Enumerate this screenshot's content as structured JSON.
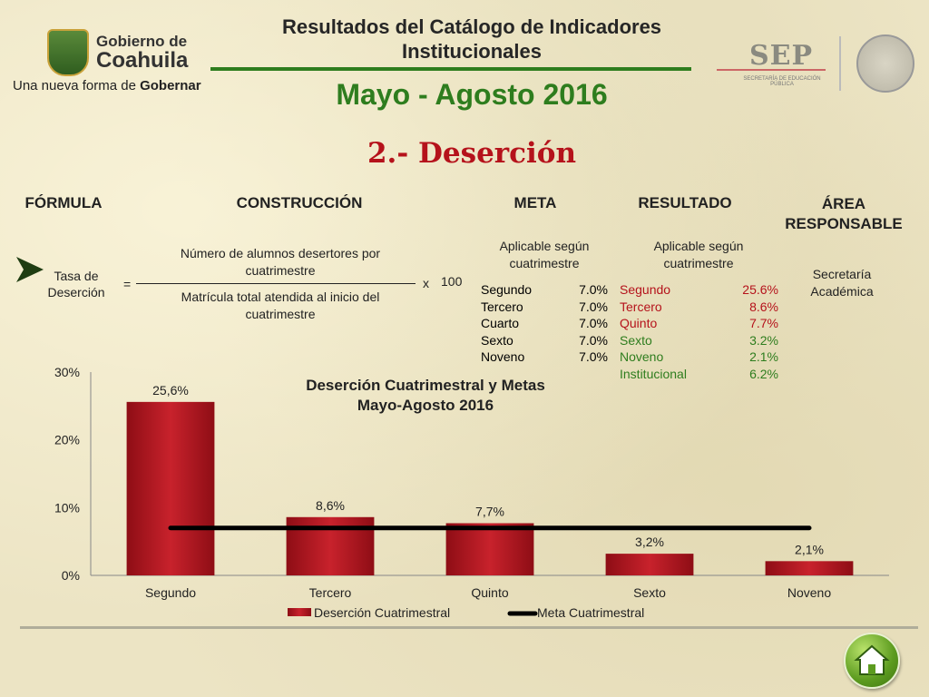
{
  "header": {
    "title": "Resultados del Catálogo de Indicadores Institucionales",
    "period": "Mayo - Agosto 2016",
    "section": "2.- Deserción"
  },
  "logos": {
    "gov_name_line1": "Gobierno de",
    "gov_name_line2": "Coahuila",
    "gov_slogan_a": "Una nueva forma de ",
    "gov_slogan_b": "Gobernar",
    "sep": "SEP",
    "sep_sub": "SECRETARÍA DE EDUCACIÓN PÚBLICA"
  },
  "columns": {
    "formula": "FÓRMULA",
    "construction": "CONSTRUCCIÓN",
    "meta": "META",
    "result": "RESULTADO",
    "area": "ÁREA RESPONSABLE"
  },
  "formula": {
    "name": "Tasa de Deserción",
    "equals": "=",
    "numerator": "Número de alumnos desertores por cuatrimestre",
    "denominator": "Matrícula total atendida al inicio del cuatrimestre",
    "times": "x",
    "factor": "100"
  },
  "meta": {
    "note": "Aplicable según cuatrimestre",
    "rows": [
      {
        "label": "Segundo",
        "value": "7.0%"
      },
      {
        "label": "Tercero",
        "value": "7.0%"
      },
      {
        "label": "Cuarto",
        "value": "7.0%"
      },
      {
        "label": "Sexto",
        "value": "7.0%"
      },
      {
        "label": "Noveno",
        "value": "7.0%"
      }
    ]
  },
  "result": {
    "note": "Aplicable según cuatrimestre",
    "rows": [
      {
        "label": "Segundo",
        "value": "25.6%",
        "color": "#b5121b"
      },
      {
        "label": "Tercero",
        "value": "8.6%",
        "color": "#b5121b"
      },
      {
        "label": "Quinto",
        "value": "7.7%",
        "color": "#b5121b"
      },
      {
        "label": "Sexto",
        "value": "3.2%",
        "color": "#2e7d1e"
      },
      {
        "label": "Noveno",
        "value": "2.1%",
        "color": "#2e7d1e"
      },
      {
        "label": "Institucional",
        "value": "6.2%",
        "color": "#2e7d1e"
      }
    ]
  },
  "area": {
    "text": "Secretaría Académica"
  },
  "chart_data": {
    "type": "bar",
    "title": "Deserción Cuatrimestral y Metas",
    "subtitle": "Mayo-Agosto 2016",
    "categories": [
      "Segundo",
      "Tercero",
      "Quinto",
      "Sexto",
      "Noveno"
    ],
    "series": [
      {
        "name": "Deserción Cuatrimestral",
        "type": "bar",
        "values": [
          25.6,
          8.6,
          7.7,
          3.2,
          2.1
        ],
        "labels": [
          "25,6%",
          "8,6%",
          "7,7%",
          "3,2%",
          "2,1%"
        ],
        "color": "#b5121b"
      },
      {
        "name": "Meta Cuatrimestral",
        "type": "line",
        "values": [
          7.0,
          7.0,
          7.0,
          7.0,
          7.0
        ],
        "color": "#000000"
      }
    ],
    "ylim": [
      0,
      30
    ],
    "yticks": [
      0,
      10,
      20,
      30
    ],
    "ytick_labels": [
      "0%",
      "10%",
      "20%",
      "30%"
    ],
    "grid": false,
    "legend": "bottom"
  }
}
